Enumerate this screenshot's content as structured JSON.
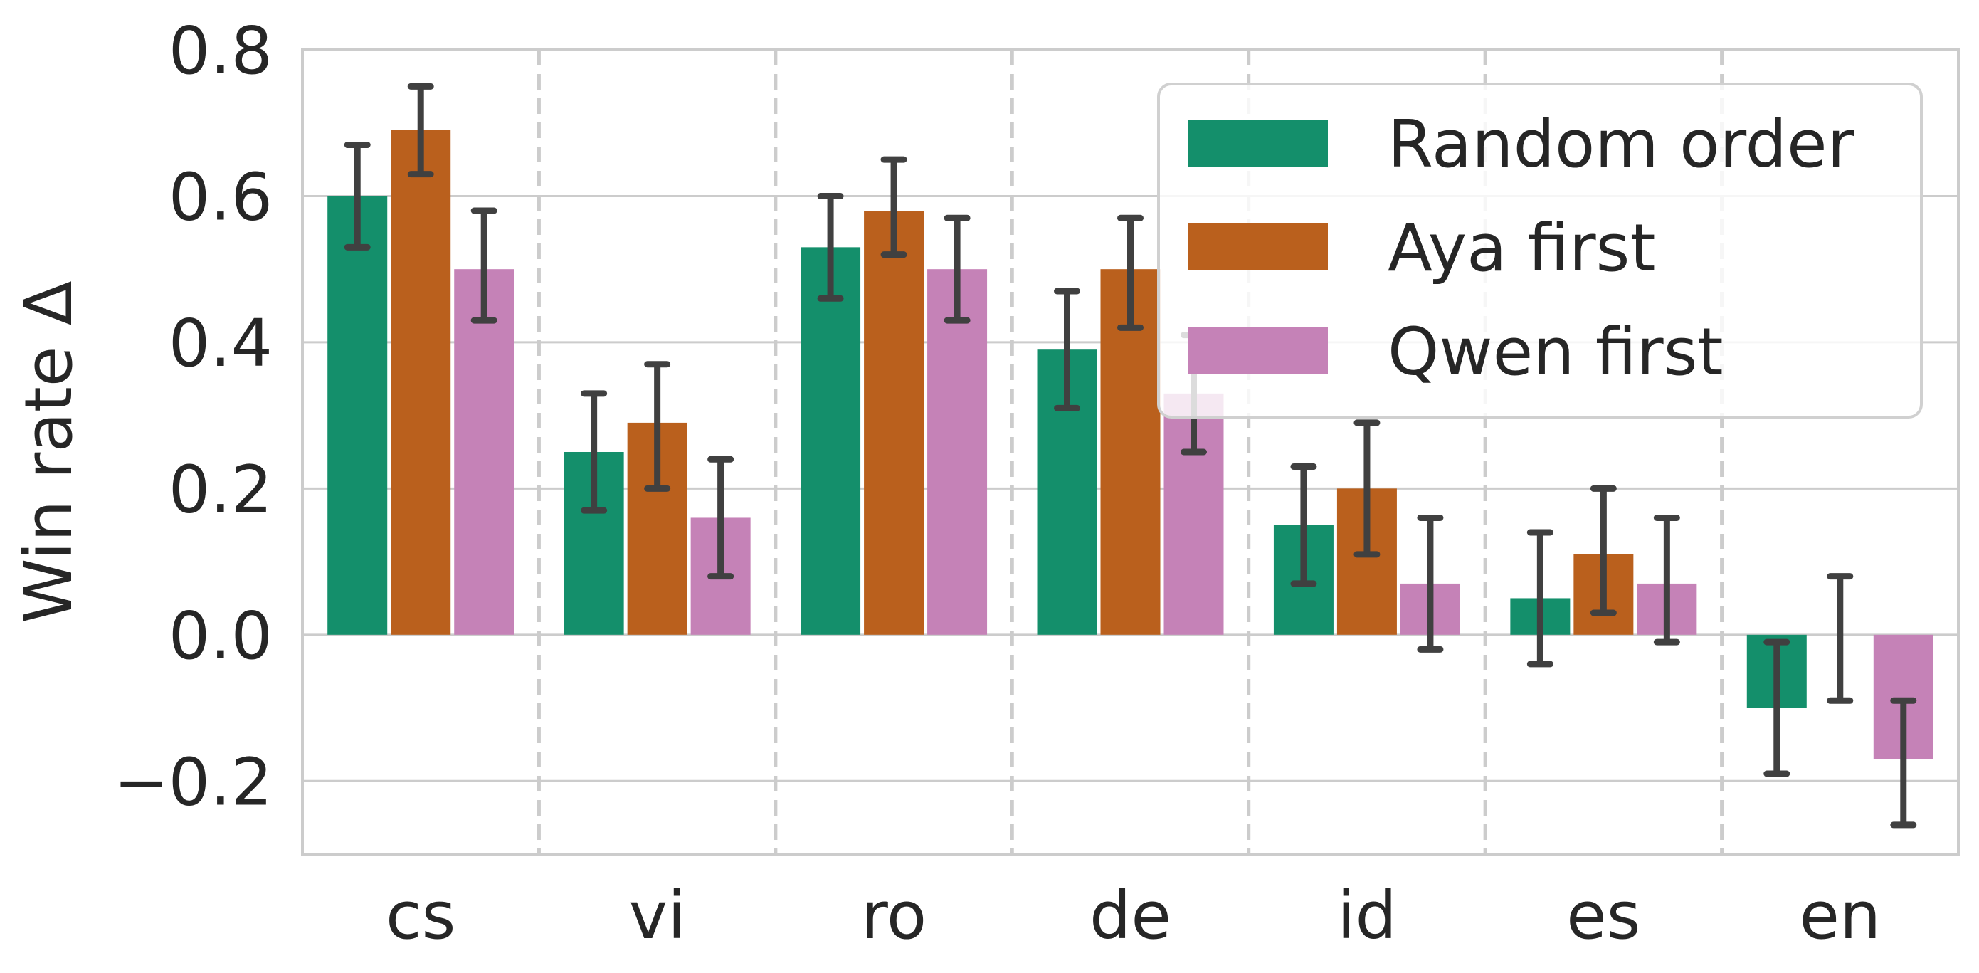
{
  "chart_data": {
    "type": "bar",
    "title": "",
    "xlabel": "",
    "ylabel": "Win rate Δ",
    "ylim": [
      -0.3,
      0.8
    ],
    "yticks": [
      -0.2,
      0.0,
      0.2,
      0.4,
      0.6,
      0.8
    ],
    "ytick_labels": [
      "−0.2",
      "0.0",
      "0.2",
      "0.4",
      "0.6",
      "0.8"
    ],
    "categories": [
      "cs",
      "vi",
      "ro",
      "de",
      "id",
      "es",
      "en"
    ],
    "legend_position": "top-right",
    "series": [
      {
        "name": "Random order",
        "color": "#148f6b",
        "values": [
          0.6,
          0.25,
          0.53,
          0.39,
          0.15,
          0.05,
          -0.1
        ],
        "err_low": [
          0.53,
          0.17,
          0.46,
          0.31,
          0.07,
          -0.04,
          -0.19
        ],
        "err_high": [
          0.67,
          0.33,
          0.6,
          0.47,
          0.23,
          0.14,
          -0.01
        ]
      },
      {
        "name": "Aya first",
        "color": "#ba601d",
        "values": [
          0.69,
          0.29,
          0.58,
          0.5,
          0.2,
          0.11,
          0.0
        ],
        "err_low": [
          0.63,
          0.2,
          0.52,
          0.42,
          0.11,
          0.03,
          -0.09
        ],
        "err_high": [
          0.75,
          0.37,
          0.65,
          0.57,
          0.29,
          0.2,
          0.08
        ]
      },
      {
        "name": "Qwen first",
        "color": "#c582b7",
        "values": [
          0.5,
          0.16,
          0.5,
          0.33,
          0.07,
          0.07,
          -0.17
        ],
        "err_low": [
          0.43,
          0.08,
          0.43,
          0.25,
          -0.02,
          -0.01,
          -0.26
        ],
        "err_high": [
          0.58,
          0.24,
          0.57,
          0.41,
          0.16,
          0.16,
          -0.09
        ]
      }
    ]
  },
  "colors": {
    "grid": "#cccccc",
    "spine": "#cccccc",
    "error_bar": "#404040",
    "text": "#262626",
    "legend_border": "#d0d0d0"
  }
}
